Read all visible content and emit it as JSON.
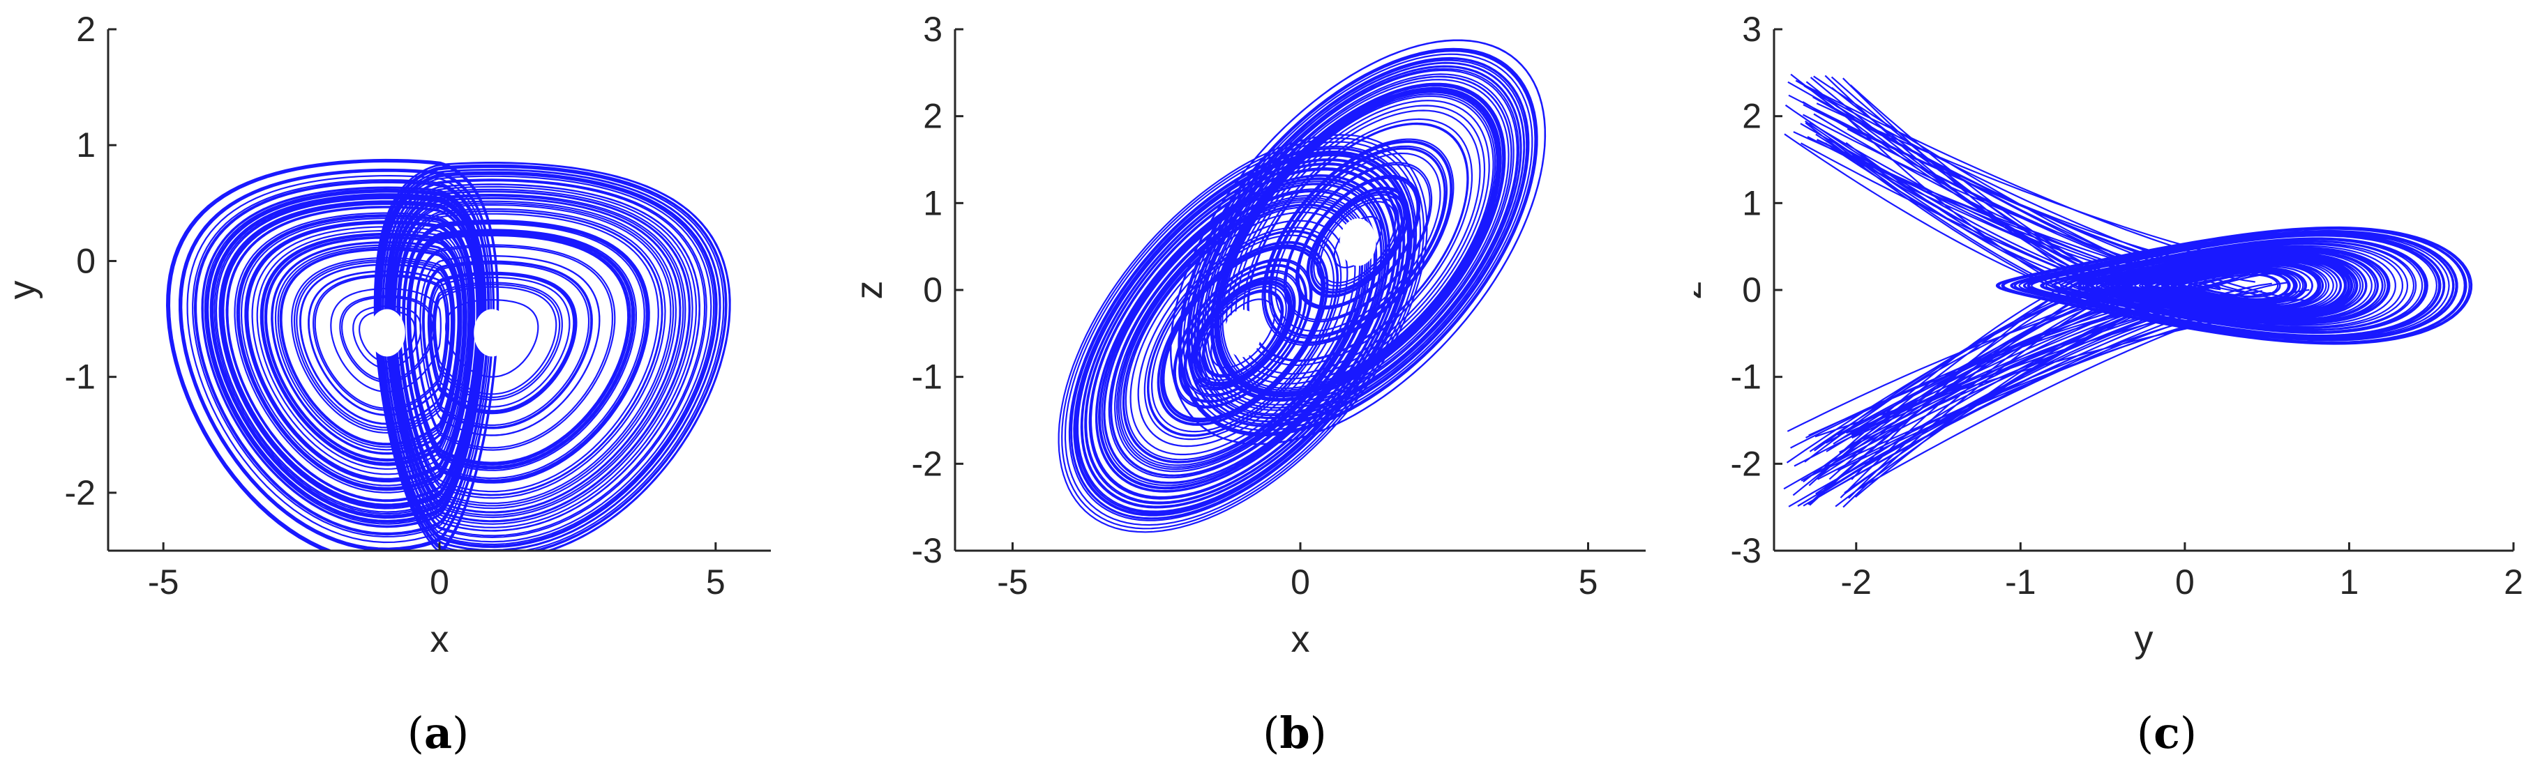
{
  "figure": {
    "line_color": "#0000ff",
    "axis_color": "#262626"
  },
  "chart_data": [
    {
      "id": "a",
      "type": "line",
      "title": "",
      "caption": "a",
      "xlabel": "x",
      "ylabel": "y",
      "xlim": [
        -6,
        6
      ],
      "ylim": [
        -2.5,
        2
      ],
      "xticks": [
        -5,
        0,
        5
      ],
      "yticks": [
        -2,
        -1,
        0,
        1,
        2
      ],
      "grid": false,
      "series": [
        {
          "description_type": "double-scroll chaotic attractor projection",
          "lobe_centers": [
            [
              -0.95,
              -0.62
            ],
            [
              0.95,
              -0.62
            ]
          ],
          "x_extent": [
            -5.0,
            5.5
          ],
          "y_extent": [
            -2.4,
            1.9
          ],
          "color": "#0000ff"
        }
      ]
    },
    {
      "id": "b",
      "type": "line",
      "title": "",
      "caption": "b",
      "xlabel": "x",
      "ylabel": "z",
      "xlim": [
        -6,
        6
      ],
      "ylim": [
        -3,
        3
      ],
      "xticks": [
        -5,
        0,
        5
      ],
      "yticks": [
        -3,
        -2,
        -1,
        0,
        1,
        2,
        3
      ],
      "grid": false,
      "series": [
        {
          "description_type": "double-scroll chaotic attractor projection",
          "lobe_centers": [
            [
              -1.0,
              -0.5
            ],
            [
              1.0,
              0.55
            ]
          ],
          "x_extent": [
            -5.0,
            5.2
          ],
          "y_extent": [
            -2.4,
            2.6
          ],
          "color": "#0000ff"
        }
      ]
    },
    {
      "id": "c",
      "type": "line",
      "title": "",
      "caption": "c",
      "xlabel": "y",
      "ylabel": "z",
      "xlim": [
        -2.5,
        2
      ],
      "ylim": [
        -3,
        3
      ],
      "xticks": [
        -2,
        -1,
        0,
        1,
        2
      ],
      "yticks": [
        -3,
        -2,
        -1,
        0,
        1,
        2,
        3
      ],
      "grid": false,
      "series": [
        {
          "description_type": "fish-shaped chaotic attractor projection",
          "lobe_centers": [
            [
              0.3,
              0.0
            ]
          ],
          "x_extent": [
            -2.5,
            1.9
          ],
          "y_extent": [
            -2.4,
            2.6
          ],
          "color": "#0000ff"
        }
      ]
    }
  ]
}
